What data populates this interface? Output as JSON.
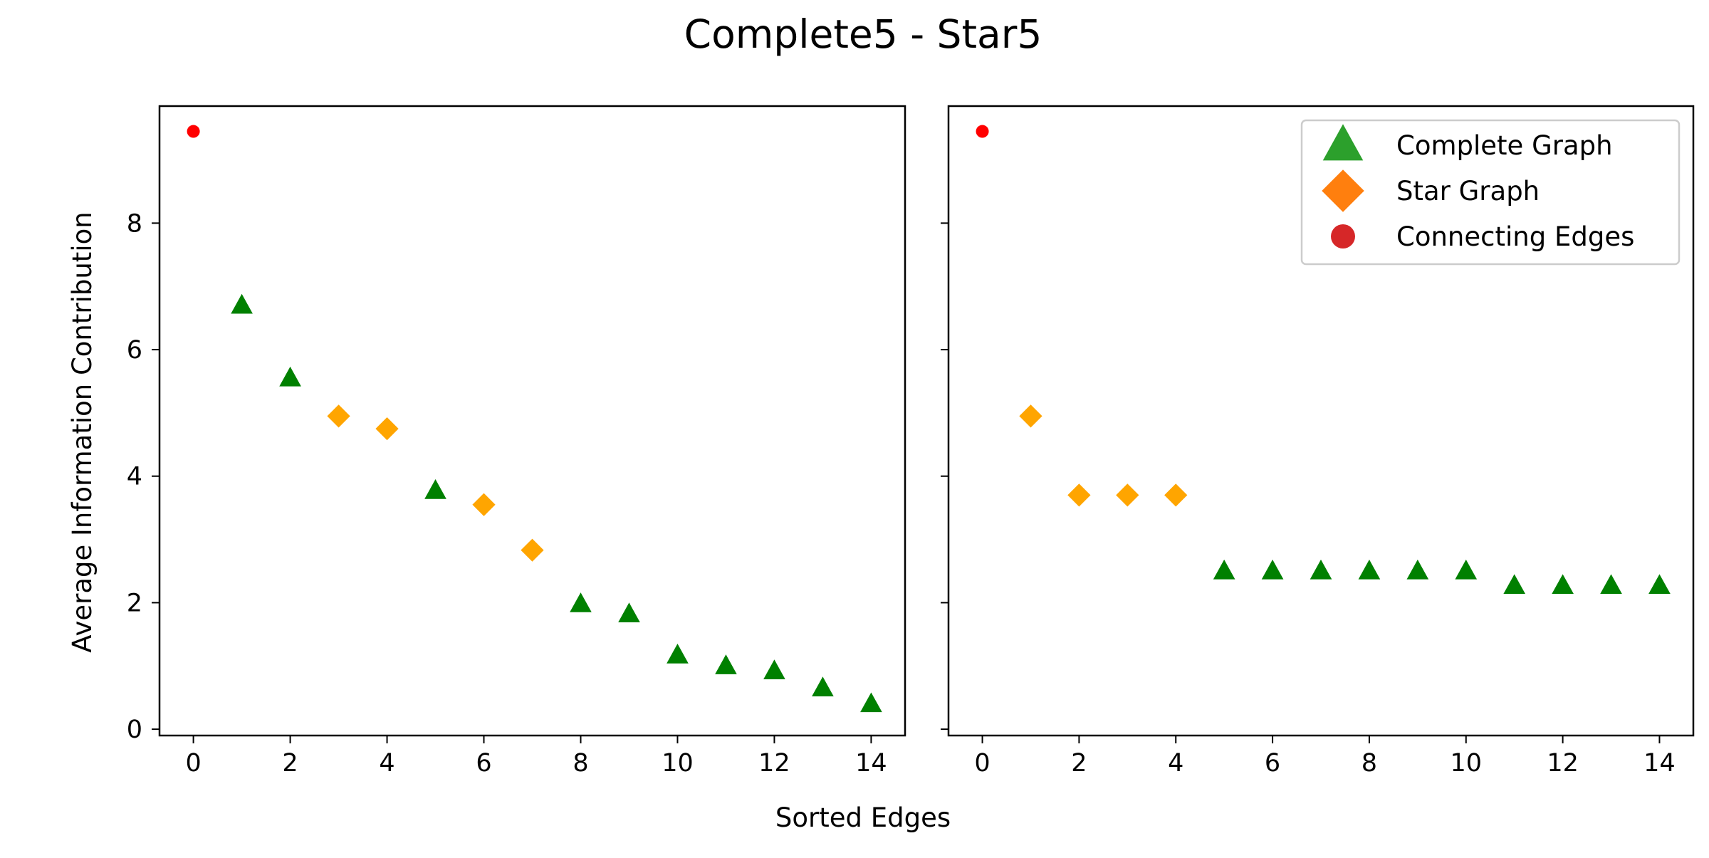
{
  "figure": {
    "title": "Complete5 - Star5",
    "xlabel": "Sorted Edges",
    "ylabel": "Average Information Contribution"
  },
  "legend": {
    "placement": "upper-right of right panel",
    "entries": [
      {
        "label": "Complete Graph",
        "marker": "triangle",
        "color": "#2ca02c"
      },
      {
        "label": "Star Graph",
        "marker": "diamond",
        "color": "#ff7f0e"
      },
      {
        "label": "Connecting Edges",
        "marker": "circle",
        "color": "#d62728"
      }
    ]
  },
  "chart_data": [
    {
      "type": "scatter",
      "panel": "left",
      "xlim": [
        -0.7,
        14.7
      ],
      "ylim": [
        -0.1,
        9.85
      ],
      "xticks": [
        0,
        2,
        4,
        6,
        8,
        10,
        12,
        14
      ],
      "yticks": [
        0,
        2,
        4,
        6,
        8
      ],
      "grid": false,
      "series": [
        {
          "category": "connecting",
          "color": "#ff0000",
          "marker": "circle",
          "points": [
            [
              0,
              9.45
            ]
          ]
        },
        {
          "category": "complete",
          "color": "#008000",
          "marker": "triangle",
          "points": [
            [
              1,
              6.7
            ],
            [
              2,
              5.55
            ],
            [
              5,
              3.77
            ],
            [
              8,
              1.98
            ],
            [
              9,
              1.82
            ],
            [
              10,
              1.17
            ],
            [
              11,
              1.0
            ],
            [
              12,
              0.92
            ],
            [
              13,
              0.65
            ],
            [
              14,
              0.4
            ]
          ]
        },
        {
          "category": "star",
          "color": "#ffa500",
          "marker": "diamond",
          "points": [
            [
              3,
              4.95
            ],
            [
              4,
              4.75
            ],
            [
              6,
              3.55
            ],
            [
              7,
              2.83
            ]
          ]
        }
      ]
    },
    {
      "type": "scatter",
      "panel": "right",
      "xlim": [
        -0.7,
        14.7
      ],
      "ylim": [
        -0.1,
        9.85
      ],
      "xticks": [
        0,
        2,
        4,
        6,
        8,
        10,
        12,
        14
      ],
      "yticks": [
        0,
        2,
        4,
        6,
        8
      ],
      "grid": false,
      "series": [
        {
          "category": "connecting",
          "color": "#ff0000",
          "marker": "circle",
          "points": [
            [
              0,
              9.45
            ]
          ]
        },
        {
          "category": "star",
          "color": "#ffa500",
          "marker": "diamond",
          "points": [
            [
              1,
              4.95
            ],
            [
              2,
              3.7
            ],
            [
              3,
              3.7
            ],
            [
              4,
              3.7
            ]
          ]
        },
        {
          "category": "complete",
          "color": "#008000",
          "marker": "triangle",
          "points": [
            [
              5,
              2.5
            ],
            [
              6,
              2.5
            ],
            [
              7,
              2.5
            ],
            [
              8,
              2.5
            ],
            [
              9,
              2.5
            ],
            [
              10,
              2.5
            ],
            [
              11,
              2.27
            ],
            [
              12,
              2.27
            ],
            [
              13,
              2.27
            ],
            [
              14,
              2.27
            ]
          ]
        }
      ]
    }
  ]
}
